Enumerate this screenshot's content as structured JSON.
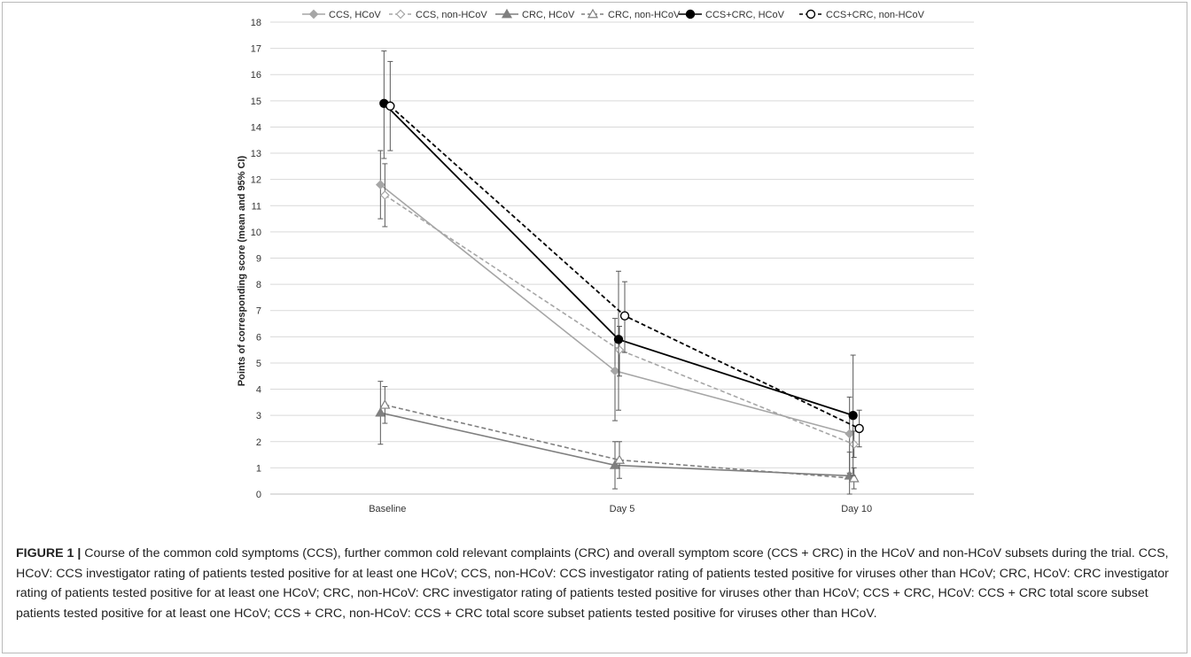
{
  "chart_data": {
    "type": "line",
    "categories": [
      "Baseline",
      "Day 5",
      "Day 10"
    ],
    "ylabel": "Points of corresponding score (mean and 95% CI)",
    "xlabel": "",
    "ylim": [
      0,
      18
    ],
    "yticks": [
      0,
      1,
      2,
      3,
      4,
      5,
      6,
      7,
      8,
      9,
      10,
      11,
      12,
      13,
      14,
      15,
      16,
      17,
      18
    ],
    "grid": true,
    "legend_position": "top",
    "series": [
      {
        "name": "CCS, HCoV",
        "values": [
          11.8,
          4.7,
          2.3
        ],
        "ci_low": [
          10.5,
          2.8,
          0.8
        ],
        "ci_high": [
          13.1,
          6.7,
          3.7
        ],
        "color": "#a6a6a6",
        "dash": false,
        "marker": "diamond-filled"
      },
      {
        "name": "CCS, non-HCoV",
        "values": [
          11.4,
          5.5,
          1.9
        ],
        "ci_low": [
          10.2,
          4.5,
          1.4
        ],
        "ci_high": [
          12.6,
          6.4,
          2.4
        ],
        "color": "#a6a6a6",
        "dash": true,
        "marker": "diamond-open"
      },
      {
        "name": "CRC, HCoV",
        "values": [
          3.1,
          1.1,
          0.7
        ],
        "ci_low": [
          1.9,
          0.2,
          0.0
        ],
        "ci_high": [
          4.3,
          2.0,
          1.6
        ],
        "color": "#7f7f7f",
        "dash": false,
        "marker": "triangle-filled"
      },
      {
        "name": "CRC, non-HCoV",
        "values": [
          3.4,
          1.3,
          0.6
        ],
        "ci_low": [
          2.7,
          0.6,
          0.2
        ],
        "ci_high": [
          4.1,
          2.0,
          1.0
        ],
        "color": "#7f7f7f",
        "dash": true,
        "marker": "triangle-open"
      },
      {
        "name": "CCS+CRC, HCoV",
        "values": [
          14.9,
          5.9,
          3.0
        ],
        "ci_low": [
          12.8,
          3.2,
          0.7
        ],
        "ci_high": [
          16.9,
          8.5,
          5.3
        ],
        "color": "#000000",
        "dash": false,
        "marker": "circle-filled"
      },
      {
        "name": "CCS+CRC, non-HCoV",
        "values": [
          14.8,
          6.8,
          2.5
        ],
        "ci_low": [
          13.1,
          5.4,
          1.8
        ],
        "ci_high": [
          16.5,
          8.1,
          3.2
        ],
        "color": "#000000",
        "dash": true,
        "marker": "circle-open"
      }
    ]
  },
  "caption": {
    "label": "FIGURE 1 |",
    "text": " Course of the common cold symptoms (CCS), further common cold relevant complaints (CRC) and overall symptom score (CCS + CRC) in the HCoV and non-HCoV subsets during the trial. CCS, HCoV: CCS investigator rating of patients tested positive for at least one HCoV; CCS, non-HCoV: CCS investigator rating of patients tested positive for viruses other than HCoV; CRC, HCoV: CRC investigator rating of patients tested positive for at least one HCoV; CRC, non-HCoV: CRC investigator rating of patients tested positive for viruses other than HCoV; CCS + CRC, HCoV: CCS + CRC total score subset patients tested positive for at least one HCoV; CCS + CRC, non-HCoV: CCS + CRC total score subset patients tested positive for viruses other than HCoV."
  }
}
